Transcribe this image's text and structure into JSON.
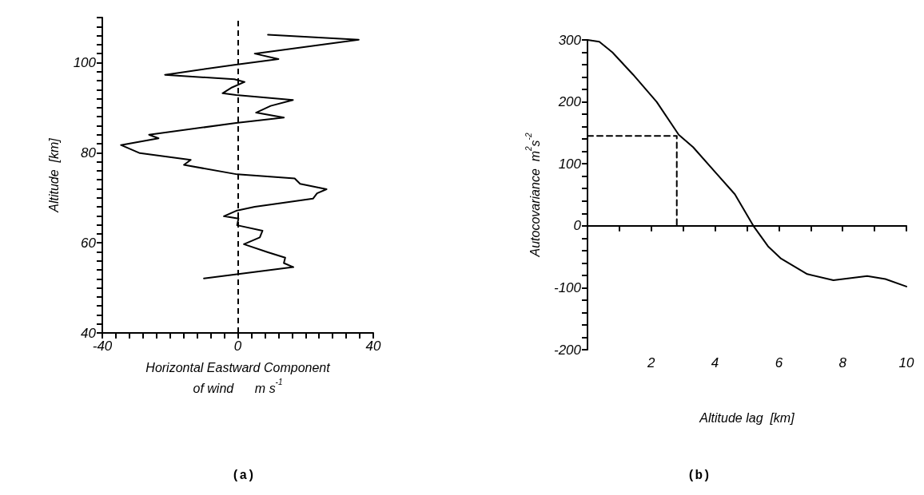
{
  "chart_data": [
    {
      "type": "line",
      "xlabel": "Horizontal Eastward Component\nof wind      m s$^{-1}$",
      "ylabel": "Altitude  [km]",
      "annotations": [
        "(a)"
      ],
      "marker": "none",
      "xlim": [
        -40,
        40
      ],
      "xticks": [
        -40,
        {
          "value": -36,
          "label": null
        },
        {
          "value": -32,
          "label": null
        },
        {
          "value": -28,
          "label": null
        },
        {
          "value": -24,
          "label": null
        },
        {
          "value": -20,
          "label": null
        },
        {
          "value": -16,
          "label": null
        },
        {
          "value": -12,
          "label": null
        },
        {
          "value": -8,
          "label": null
        },
        {
          "value": -4,
          "label": null
        },
        0,
        {
          "value": 4,
          "label": null
        },
        {
          "value": 8,
          "label": null
        },
        {
          "value": 12,
          "label": null
        },
        {
          "value": 16,
          "label": null
        },
        {
          "value": 20,
          "label": null
        },
        {
          "value": 24,
          "label": null
        },
        {
          "value": 28,
          "label": null
        },
        {
          "value": 32,
          "label": null
        },
        {
          "value": 36,
          "label": null
        },
        40
      ],
      "ylim": [
        40,
        110
      ],
      "yticks": [
        40,
        {
          "value": 42,
          "label": null
        },
        {
          "value": 44,
          "label": null
        },
        {
          "value": 46,
          "label": null
        },
        {
          "value": 48,
          "label": null
        },
        {
          "value": 50,
          "label": null
        },
        {
          "value": 52,
          "label": null
        },
        {
          "value": 54,
          "label": null
        },
        {
          "value": 56,
          "label": null
        },
        {
          "value": 58,
          "label": null
        },
        60,
        {
          "value": 62,
          "label": null
        },
        {
          "value": 64,
          "label": null
        },
        {
          "value": 66,
          "label": null
        },
        {
          "value": 68,
          "label": null
        },
        {
          "value": 70,
          "label": null
        },
        {
          "value": 72,
          "label": null
        },
        {
          "value": 74,
          "label": null
        },
        {
          "value": 76,
          "label": null
        },
        {
          "value": 78,
          "label": null
        },
        80,
        {
          "value": 82,
          "label": null
        },
        {
          "value": 84,
          "label": null
        },
        {
          "value": 86,
          "label": null
        },
        {
          "value": 88,
          "label": null
        },
        {
          "value": 90,
          "label": null
        },
        {
          "value": 92,
          "label": null
        },
        {
          "value": 94,
          "label": null
        },
        {
          "value": 96,
          "label": null
        },
        {
          "value": 98,
          "label": null
        },
        100,
        {
          "value": 102,
          "label": null
        },
        {
          "value": 104,
          "label": null
        },
        {
          "value": 106,
          "label": null
        },
        {
          "value": 108,
          "label": null
        },
        {
          "value": 110,
          "label": null
        }
      ],
      "ref_lines": [
        {
          "axis": "x",
          "value": 0,
          "line_style": "dashed",
          "color": "#000000"
        }
      ],
      "series": [
        {
          "color": "#000000",
          "line_style": "solid",
          "x": [
            8.9,
            35.7,
            5,
            12,
            -1,
            -21.5,
            -1,
            2,
            -1.7,
            -4.5,
            -0.5,
            16.3,
            9.7,
            5.4,
            13.6,
            -0.5,
            -26.2,
            -23.4,
            -34.5,
            -28.9,
            -13.9,
            -15.9,
            -0.2,
            16.8,
            18.4,
            26.2,
            23.4,
            22.2,
            5,
            -0.5,
            -4.1,
            0.2,
            -0.2,
            7.3,
            6.5,
            1.8,
            8.9,
            14,
            13.6,
            16.4,
            -10
          ],
          "values": [
            106.2,
            105.1,
            102,
            100.8,
            99.5,
            97.3,
            96.3,
            95.7,
            94.5,
            93.2,
            92.8,
            91.7,
            90.4,
            88.9,
            87.8,
            86.6,
            84,
            83.2,
            81.7,
            79.9,
            78.4,
            77.3,
            75.2,
            74.3,
            73.1,
            71.9,
            71,
            69.8,
            68,
            67.1,
            65.9,
            65.4,
            63.9,
            62.7,
            61.2,
            59.7,
            57.9,
            56.7,
            55.5,
            54.6,
            52.1
          ]
        }
      ]
    },
    {
      "type": "line",
      "xlabel": "Altitude lag  [km]",
      "ylabel": "Autocovariance  m$^{2}$s$^{-2}$",
      "annotations": [
        "(b)"
      ],
      "marker": "none",
      "xlim": [
        0,
        10
      ],
      "xticks": [
        {
          "value": 0,
          "label": null
        },
        {
          "value": 1,
          "label": null
        },
        2,
        {
          "value": 3,
          "label": null
        },
        4,
        {
          "value": 5,
          "label": null
        },
        6,
        {
          "value": 7,
          "label": null
        },
        8,
        {
          "value": 9,
          "label": null
        },
        10
      ],
      "ylim": [
        -200,
        300
      ],
      "yticks": [
        -200,
        {
          "value": -180,
          "label": null
        },
        {
          "value": -160,
          "label": null
        },
        {
          "value": -140,
          "label": null
        },
        {
          "value": -120,
          "label": null
        },
        -100,
        {
          "value": -80,
          "label": null
        },
        {
          "value": -60,
          "label": null
        },
        {
          "value": -40,
          "label": null
        },
        {
          "value": -20,
          "label": null
        },
        0,
        {
          "value": 20,
          "label": null
        },
        {
          "value": 40,
          "label": null
        },
        {
          "value": 60,
          "label": null
        },
        {
          "value": 80,
          "label": null
        },
        100,
        {
          "value": 120,
          "label": null
        },
        {
          "value": 140,
          "label": null
        },
        {
          "value": 160,
          "label": null
        },
        {
          "value": 180,
          "label": null
        },
        200,
        {
          "value": 220,
          "label": null
        },
        {
          "value": 240,
          "label": null
        },
        {
          "value": 260,
          "label": null
        },
        {
          "value": 280,
          "label": null
        },
        300
      ],
      "series": [
        {
          "color": "#000000",
          "line_style": "solid",
          "x": [
            0,
            0.37,
            0.78,
            1.43,
            2.17,
            2.86,
            3.31,
            4.05,
            4.62,
            5.2,
            5.66,
            6.07,
            6.89,
            7.71,
            8.77,
            9.34,
            10
          ],
          "values": [
            300,
            297,
            280,
            244,
            200,
            147,
            127,
            84,
            51,
            0,
            -33,
            -53,
            -78,
            -88,
            -81,
            -86,
            -98
          ]
        },
        {
          "color": "#000000",
          "line_style": "dashed",
          "x": [
            0,
            2.8,
            2.8
          ],
          "values": [
            145,
            145,
            0
          ]
        }
      ]
    }
  ]
}
